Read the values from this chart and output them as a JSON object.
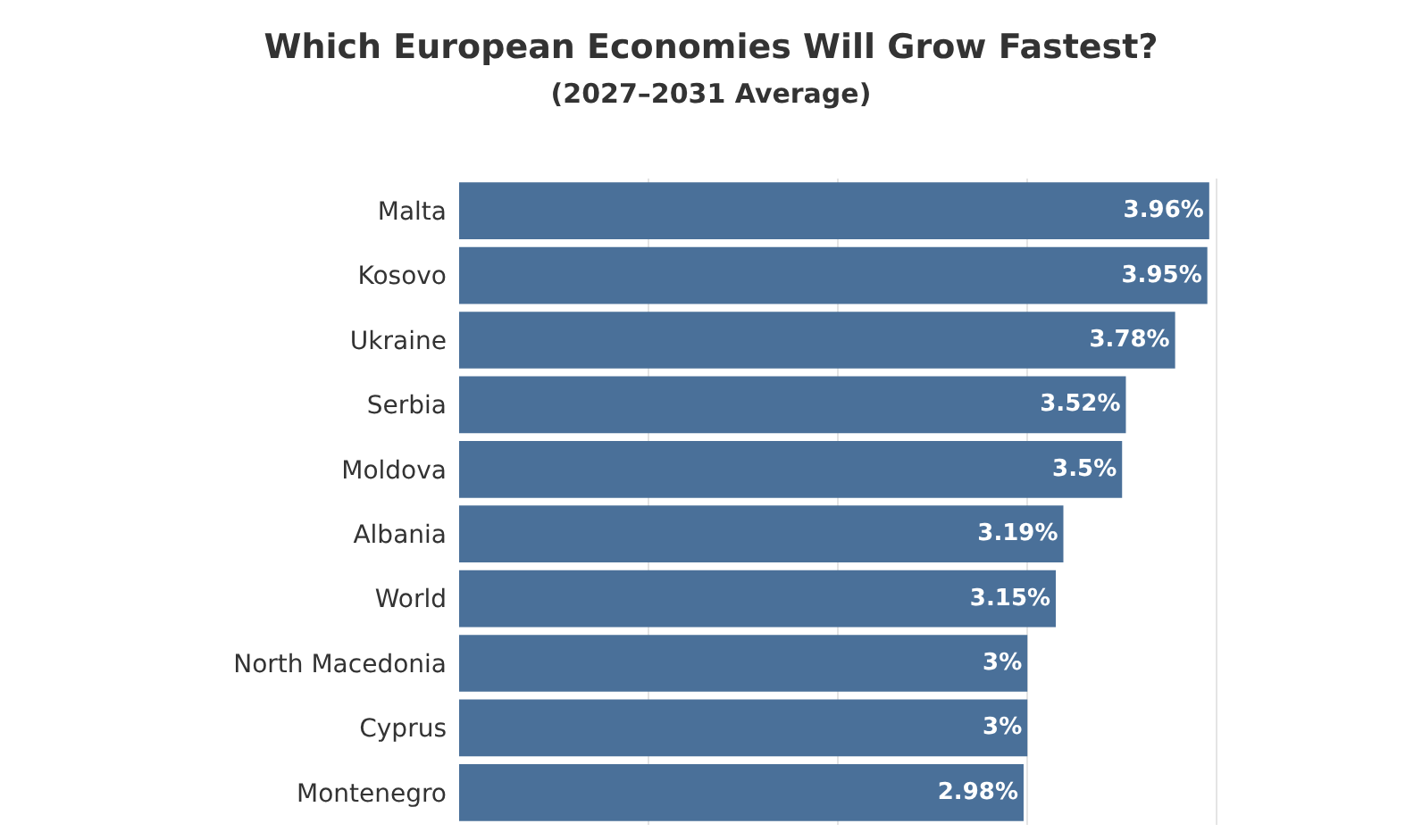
{
  "chart_data": {
    "type": "bar",
    "orientation": "horizontal",
    "title": "Which European Economies Will Grow Fastest?",
    "subtitle": "(2027–2031 Average)",
    "categories": [
      "Malta",
      "Kosovo",
      "Ukraine",
      "Serbia",
      "Moldova",
      "Albania",
      "World",
      "North Macedonia",
      "Cyprus",
      "Montenegro"
    ],
    "values": [
      3.96,
      3.95,
      3.78,
      3.52,
      3.5,
      3.19,
      3.15,
      3,
      3,
      2.98
    ],
    "value_labels": [
      "3.96%",
      "3.95%",
      "3.78%",
      "3.52%",
      "3.5%",
      "3.19%",
      "3.15%",
      "3%",
      "3%",
      "2.98%"
    ],
    "color": "#4a7099",
    "grid": "x",
    "tick_labels": "y",
    "legend": false
  }
}
